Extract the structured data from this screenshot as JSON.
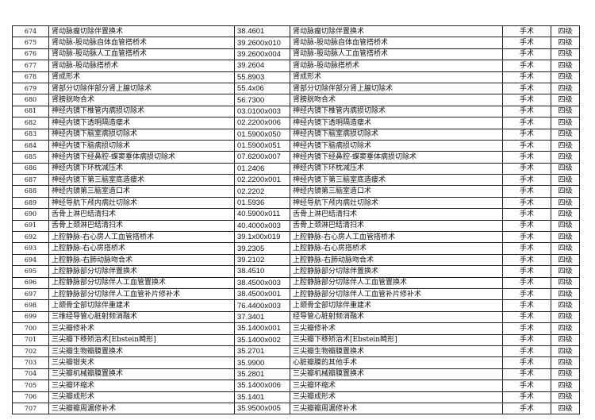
{
  "rows": [
    [
      "674",
      "肾动脉瘤切除伴置换术",
      "38.4601",
      "肾动脉瘤切除伴置换术",
      "手术",
      "四级"
    ],
    [
      "675",
      "肾动脉-股动脉自体血管搭桥术",
      "39.2600x010",
      "肾动脉-股动脉自体血管搭桥术",
      "手术",
      "四级"
    ],
    [
      "676",
      "肾动脉-股动脉人工血管搭桥术",
      "39.2600x004",
      "肾动脉-股动脉人工血管搭桥术",
      "手术",
      "四级"
    ],
    [
      "677",
      "肾动脉-股动脉搭桥术",
      "39.2604",
      "肾动脉-股动脉搭桥术",
      "手术",
      "四级"
    ],
    [
      "678",
      "肾成形术",
      "55.8903",
      "肾成形术",
      "手术",
      "四级"
    ],
    [
      "679",
      "肾部分切除伴部分肾上腺切除术",
      "55.4x06",
      "肾部分切除伴部分肾上腺切除术",
      "手术",
      "四级"
    ],
    [
      "680",
      "肾膀胱吻合术",
      "56.7300",
      "肾膀胱吻合术",
      "手术",
      "四级"
    ],
    [
      "681",
      "神经内镜下椎管内病损切除术",
      "03.0100x003",
      "神经内镜下椎管内病损切除术",
      "手术",
      "四级"
    ],
    [
      "682",
      "神经内镜下透明隔造瘘术",
      "02.2200x006",
      "神经内镜下透明隔造瘘术",
      "手术",
      "四级"
    ],
    [
      "683",
      "神经内镜下脑室病损切除术",
      "01.5900x050",
      "神经内镜下脑室病损切除术",
      "手术",
      "四级"
    ],
    [
      "684",
      "神经内镜下脑病损切除术",
      "01.5900x051",
      "神经内镜下脑病损切除术",
      "手术",
      "四级"
    ],
    [
      "685",
      "神经内镜下经鼻腔-蝶窦垂体病损切除术",
      "07.6200x007",
      "神经内镜下经鼻腔-蝶窦垂体病损切除术",
      "手术",
      "四级"
    ],
    [
      "686",
      "神经内镜下环枕减压术",
      "01.2406",
      "神经内镜下环枕减压术",
      "手术",
      "四级"
    ],
    [
      "687",
      "神经内镜下第三脑室底造瘘术",
      "02.2200x001",
      "神经内镜下第三脑室底造瘘术",
      "手术",
      "四级"
    ],
    [
      "688",
      "神经内镜第三脑室造口术",
      "02.2202",
      "神经内镜第三脑室造口术",
      "手术",
      "四级"
    ],
    [
      "689",
      "神经导航下颅内病灶切除术",
      "01.5936",
      "神经导航下颅内病灶切除术",
      "手术",
      "四级"
    ],
    [
      "690",
      "舌骨上淋巴结清扫术",
      "40.5900x011",
      "舌骨上淋巴结清扫术",
      "手术",
      "四级"
    ],
    [
      "691",
      "舌骨上颈淋巴结清扫术",
      "40.4000x003",
      "舌骨上颈淋巴结清扫术",
      "手术",
      "四级"
    ],
    [
      "692",
      "上腔静脉-右心房人工血管搭桥术",
      "39.1x00x019",
      "上腔静脉-右心房人工血管搭桥术",
      "手术",
      "四级"
    ],
    [
      "693",
      "上腔静脉-右心房搭桥术",
      "39.2305",
      "上腔静脉-右心房搭桥术",
      "手术",
      "四级"
    ],
    [
      "694",
      "上腔静脉-右肺动脉吻合术",
      "39.2102",
      "上腔静脉-右肺动脉吻合术",
      "手术",
      "四级"
    ],
    [
      "695",
      "上腔静脉部分切除伴置换术",
      "38.4510",
      "上腔静脉部分切除伴置换术",
      "手术",
      "四级"
    ],
    [
      "696",
      "上腔静脉部分切除伴人工血管置换术",
      "38.4500x003",
      "上腔静脉部分切除伴人工血管置换术",
      "手术",
      "四级"
    ],
    [
      "697",
      "上腔静脉部分切除伴人工血管补片修补术",
      "38.4500x001",
      "上腔静脉部分切除伴人工血管补片修补术",
      "手术",
      "四级"
    ],
    [
      "698",
      "上颌骨全部切除伴重建术",
      "76.4400x003",
      "上颌骨全部切除伴重建术",
      "手术",
      "四级"
    ],
    [
      "699",
      "三维经导管心脏射频消融术",
      "37.3401",
      "经导管心脏射频消融术",
      "手术",
      "四级"
    ],
    [
      "700",
      "三尖瓣修补术",
      "35.1400x001",
      "三尖瓣修补术",
      "手术",
      "四级"
    ],
    [
      "701",
      "三尖瓣下移矫治术[Ebstein畸形]",
      "35.1400x002",
      "三尖瓣下移矫治术[Ebstein畸形]",
      "手术",
      "四级"
    ],
    [
      "702",
      "三尖瓣生物瓣膜置换术",
      "35.2701",
      "三尖瓣生物瓣膜置换术",
      "手术",
      "四级"
    ],
    [
      "703",
      "三尖瓣钳夹术",
      "35.9900",
      "心脏瓣膜的其他手术",
      "手术",
      "四级"
    ],
    [
      "704",
      "三尖瓣机械瓣膜置换术",
      "35.2801",
      "三尖瓣机械瓣膜置换术",
      "手术",
      "四级"
    ],
    [
      "705",
      "三尖瓣环缩术",
      "35.1400x006",
      "三尖瓣环缩术",
      "手术",
      "四级"
    ],
    [
      "706",
      "三尖瓣成形术",
      "35.1401",
      "三尖瓣成形术",
      "手术",
      "四级"
    ],
    [
      "707",
      "三尖瓣瓣周漏修补术",
      "35.9500x005",
      "三尖瓣瓣周漏修补术",
      "手术",
      "四级"
    ]
  ]
}
